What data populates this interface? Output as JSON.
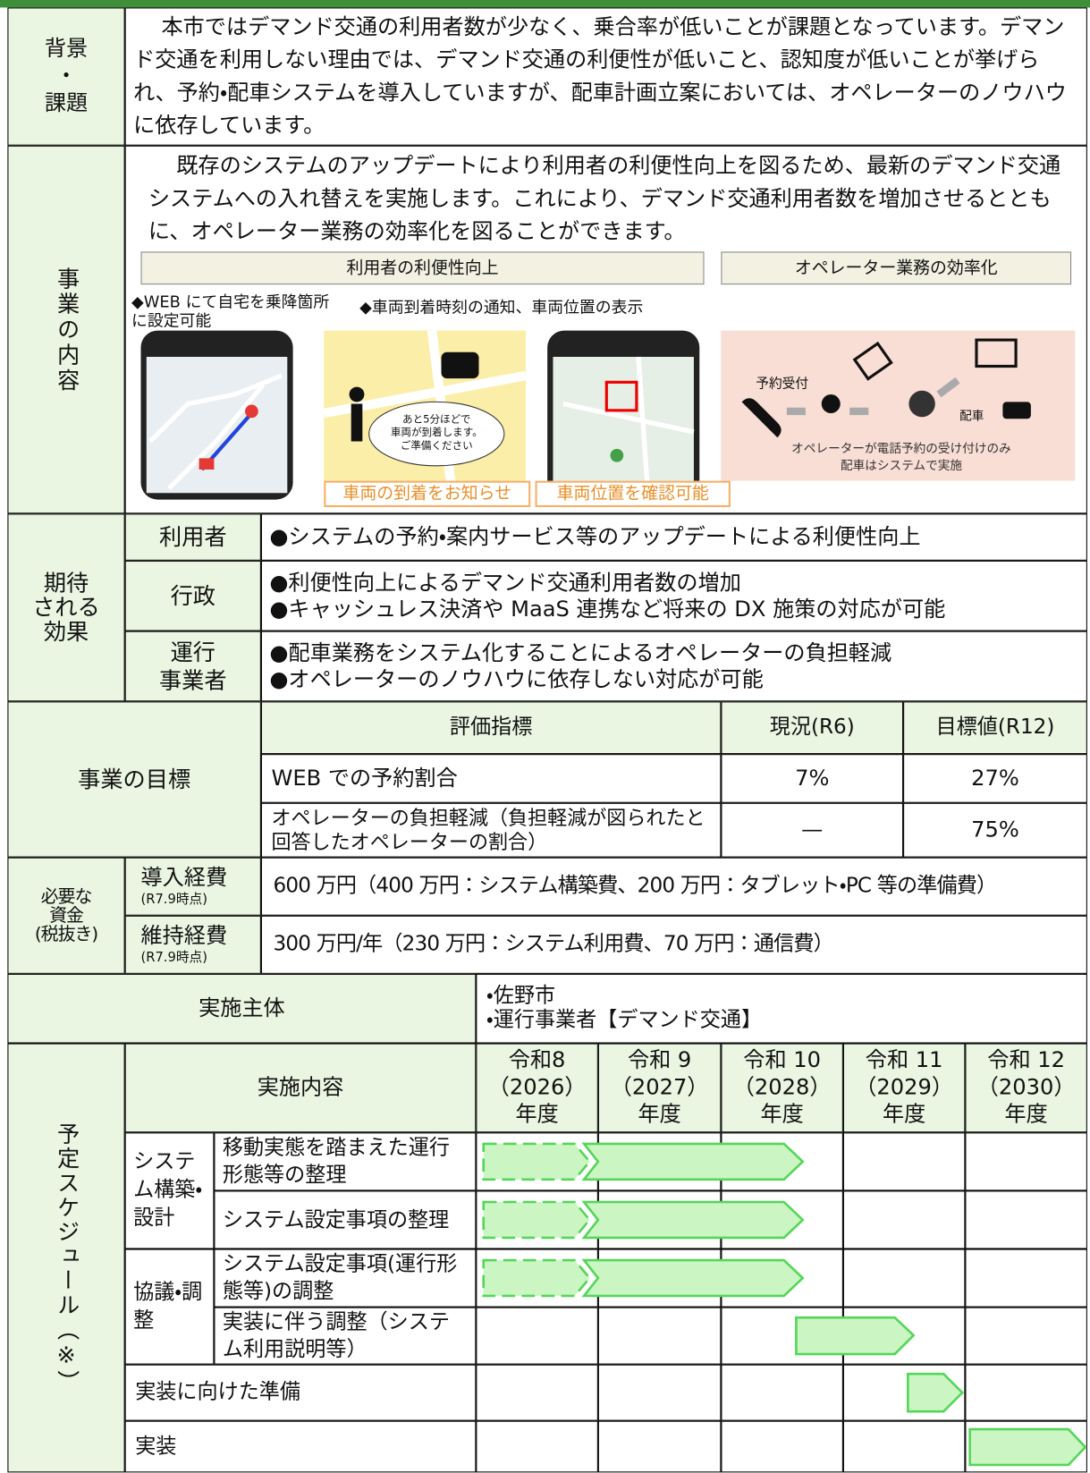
{
  "background": {
    "label": [
      "背景",
      "・",
      "課題"
    ],
    "text": "本市ではデマンド交通の利用者数が少なく、乗合率が低いことが課題となっています。デマンド交通を利用しない理由では、デマンド交通の利便性が低いこと、認知度が低いことが挙げられ、予約・配車システムを導入していますが、配車計画立案においては、オペレーターのノウハウに依存しています。"
  },
  "content": {
    "label": "事業の内容",
    "text": "既存のシステムのアップデートにより利用者の利便性向上を図るため、最新のデマンド交通システムへの入れ替えを実施します。これにより、デマンド交通利用者数を増加させるとともに、オペレーター業務の効率化を図ることができます。",
    "panels": {
      "left_title": "利用者の利便性向上",
      "right_title": "オペレーター業務の効率化",
      "note1": "◆WEB にて自宅を乗降箇所に設定可能",
      "note2": "◆車両到着時刻の通知、車両位置の表示",
      "bubble": [
        "あと5分ほどで",
        "車両が到着します。",
        "ご準備ください"
      ],
      "caption1": "車両の到着をお知らせ",
      "caption2": "車両位置を確認可能",
      "reception": "予約受付",
      "dispatch": "配車",
      "flow_note": [
        "オペレーターが電話予約の受け付けのみ",
        "配車はシステムで実施"
      ]
    }
  },
  "effects": {
    "label": [
      "期待",
      "される",
      "効果"
    ],
    "rows": [
      {
        "actor": [
          "利用者"
        ],
        "items": [
          "●システムの予約・案内サービス等のアップデートによる利便性向上"
        ]
      },
      {
        "actor": [
          "行政"
        ],
        "items": [
          "●利便性向上によるデマンド交通利用者数の増加",
          "●キャッシュレス決済や MaaS 連携など将来の DX 施策の対応が可能"
        ]
      },
      {
        "actor": [
          "運行",
          "事業者"
        ],
        "items": [
          "●配車業務をシステム化することによるオペレーターの負担軽減",
          "●オペレーターのノウハウに依存しない対応が可能"
        ]
      }
    ]
  },
  "goals": {
    "label": "事業の目標",
    "headers": [
      "評価指標",
      "現況(R6)",
      "目標値(R12)"
    ],
    "rows": [
      [
        "WEB での予約割合",
        "7%",
        "27%"
      ],
      [
        "オペレーターの負担軽減（負担軽減が図られたと回答したオペレーターの割合）",
        "—",
        "75%"
      ]
    ]
  },
  "funds": {
    "label": [
      "必要な",
      "資金",
      "(税抜き)"
    ],
    "rows": [
      {
        "item": "導入経費",
        "note": "(R7.9時点)",
        "text": "600 万円（400 万円：システム構築費、200 万円：タブレット・PC 等の準備費）"
      },
      {
        "item": "維持経費",
        "note": "(R7.9時点)",
        "text": "300 万円/年（230 万円：システム利用費、70 万円：通信費）"
      }
    ]
  },
  "entity": {
    "label": "実施主体",
    "items": [
      "・佐野市",
      "・運行事業者【デマンド交通】"
    ]
  },
  "schedule": {
    "label": "予定スケジュール（※）",
    "header": "実施内容",
    "years": [
      [
        "令和8",
        "（2026）",
        "年度"
      ],
      [
        "令和 9",
        "（2027）",
        "年度"
      ],
      [
        "令和 10",
        "（2028）",
        "年度"
      ],
      [
        "令和 11",
        "（2029）",
        "年度"
      ],
      [
        "令和 12",
        "（2030）",
        "年度"
      ]
    ],
    "groups": [
      {
        "name": "システム構築・設計",
        "items": [
          "移動実態を踏まえた運行形態等の整理",
          "システム設定事項の整理"
        ]
      },
      {
        "name": "協議・調整",
        "items": [
          "システム設定事項(運行形態等)の調整",
          "実装に伴う調整（システム利用説明等）"
        ]
      }
    ],
    "rows": [
      "実装に向けた準備",
      "実装"
    ]
  }
}
